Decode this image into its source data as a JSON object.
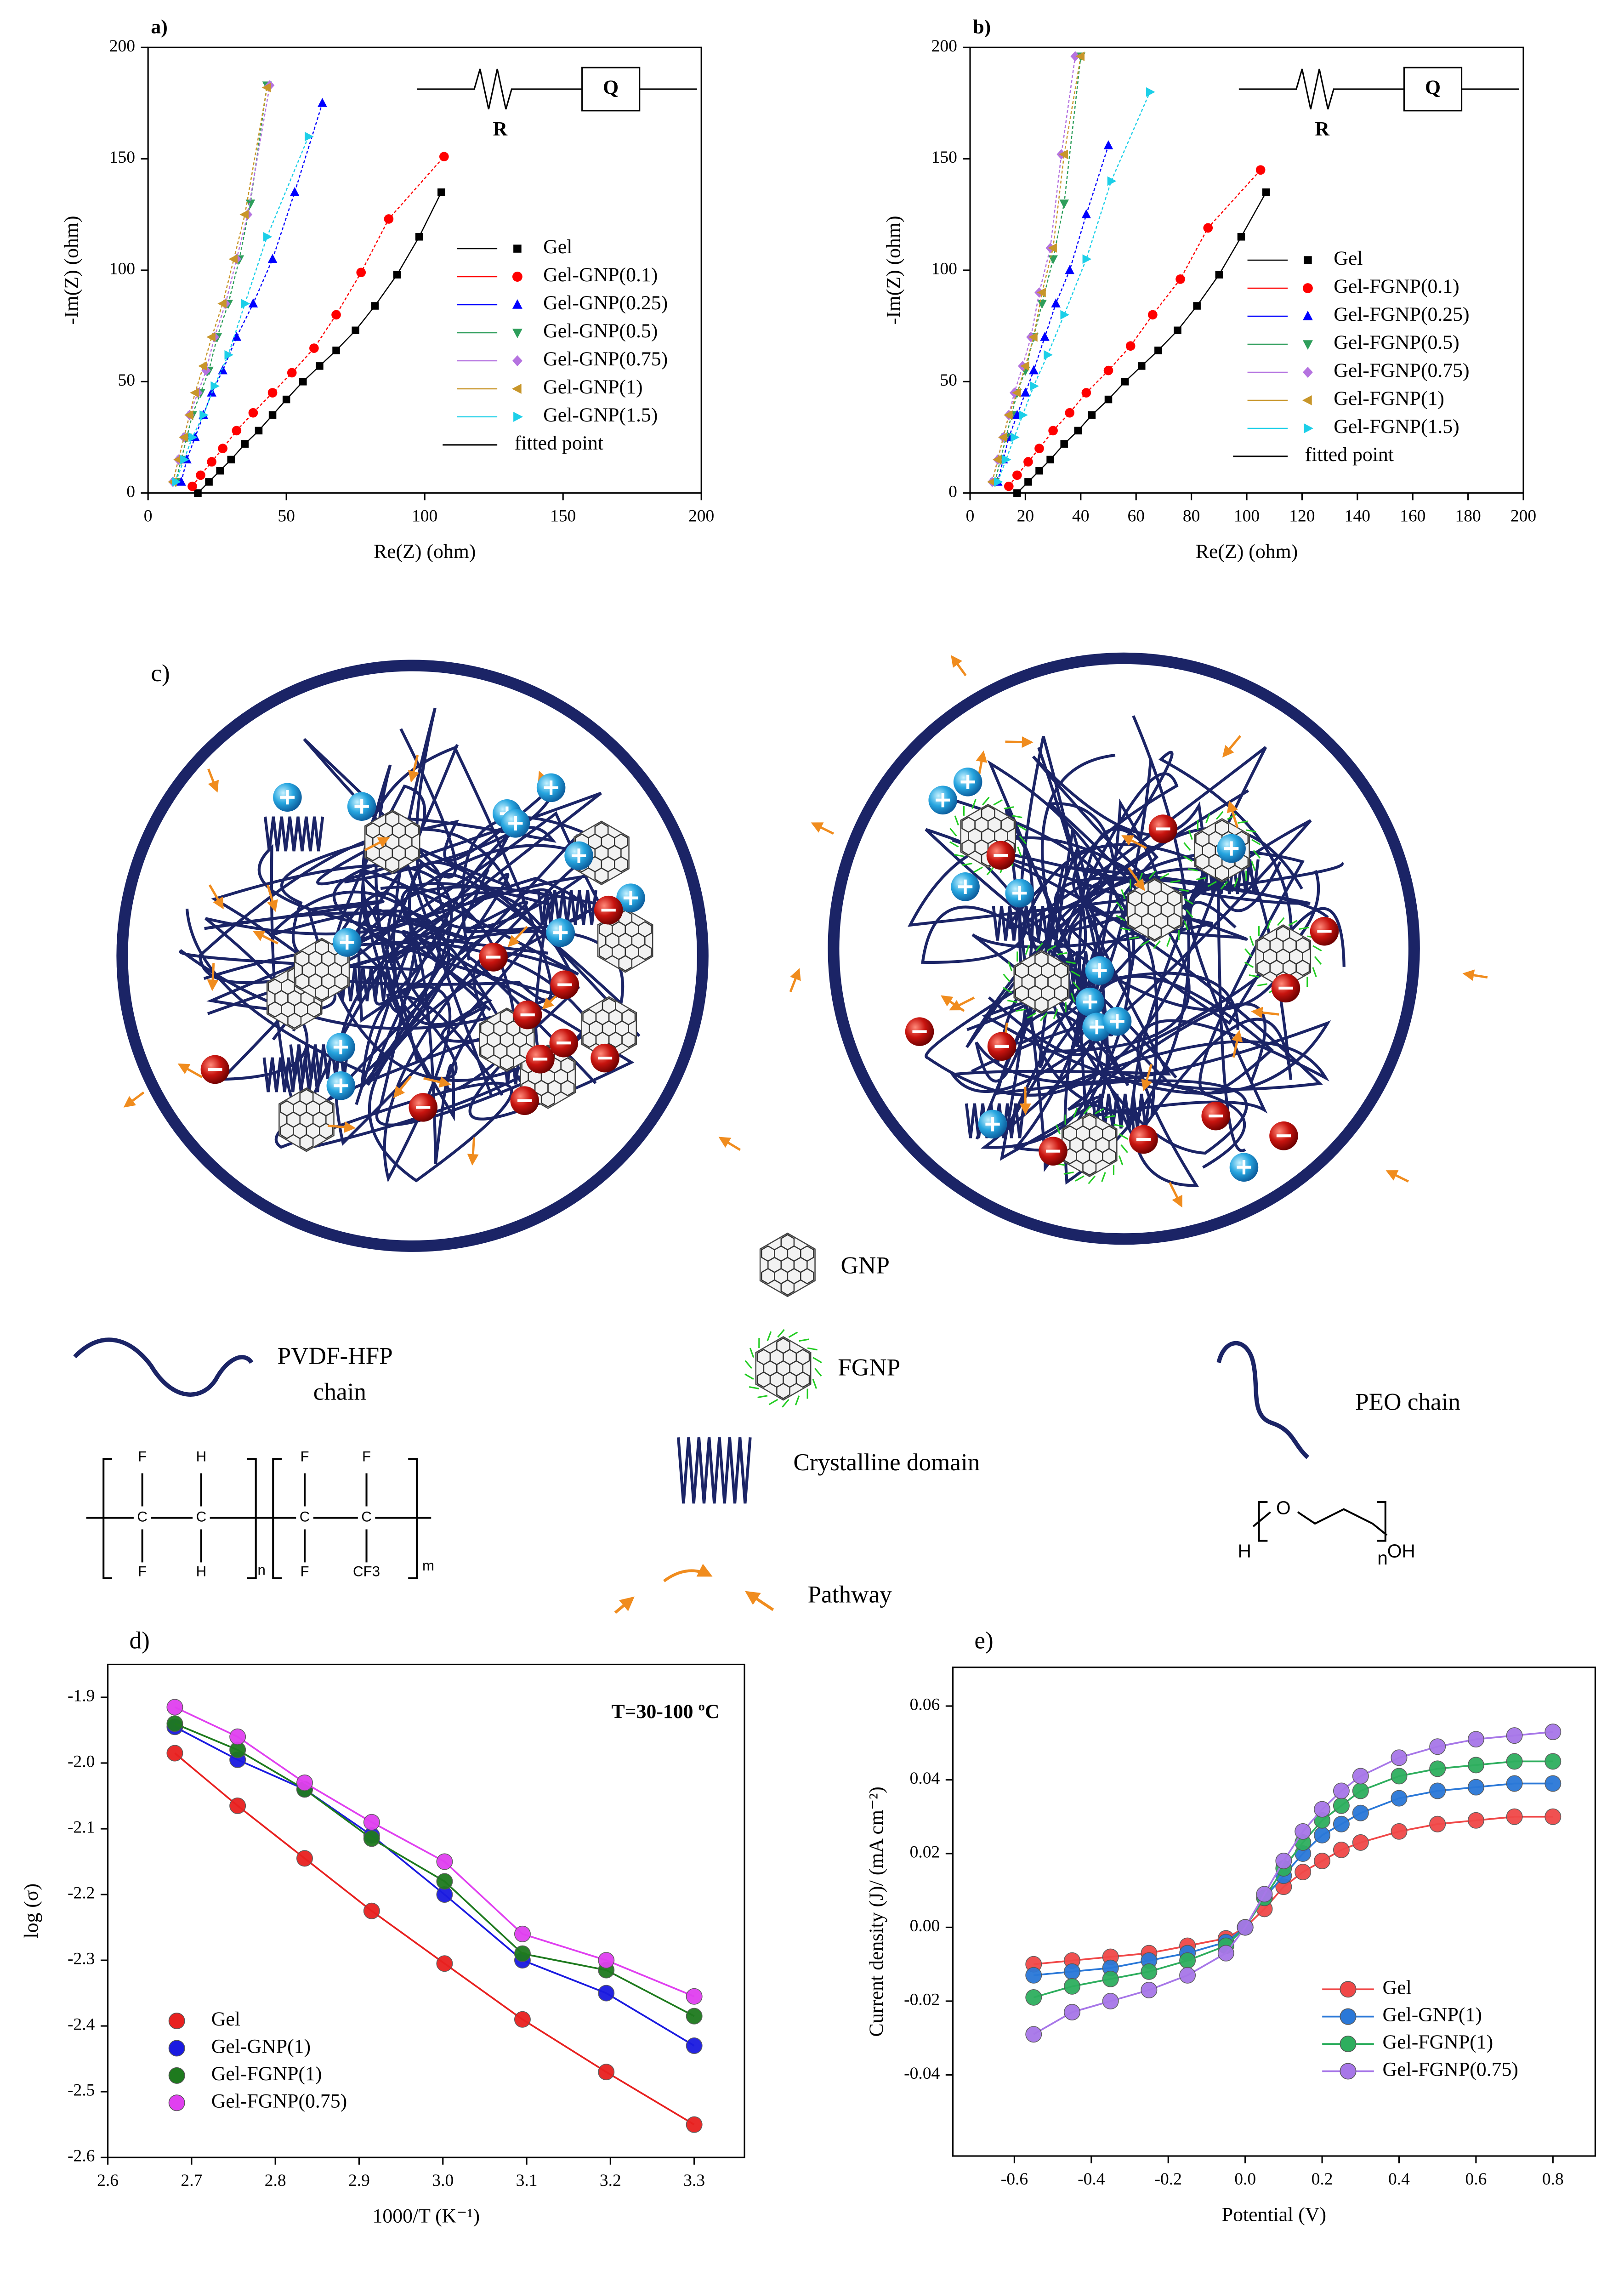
{
  "chart_data": [
    {
      "type": "scatter",
      "title": "a)",
      "x_label": "Re(Z) (ohm)",
      "y_label": "-Im(Z) (ohm)",
      "xlim": [
        0,
        200
      ],
      "ylim": [
        0,
        200
      ],
      "xticks": [
        0,
        50,
        100,
        150,
        200
      ],
      "yticks": [
        0,
        50,
        100,
        150,
        200
      ],
      "legend": "center right",
      "fit_label": "fitted point",
      "circuit": [
        "R",
        "Q"
      ],
      "series": [
        {
          "name": "Gel",
          "color": "#000000",
          "marker": "square",
          "x": [
            18,
            22,
            26,
            30,
            35,
            40,
            45,
            50,
            56,
            62,
            68,
            75,
            82,
            90,
            98,
            106
          ],
          "values": [
            0,
            5,
            10,
            15,
            22,
            28,
            35,
            42,
            50,
            57,
            64,
            73,
            84,
            98,
            115,
            135
          ]
        },
        {
          "name": "Gel-GNP(0.1)",
          "color": "#ff0000",
          "marker": "circle",
          "x": [
            16,
            19,
            23,
            27,
            32,
            38,
            45,
            52,
            60,
            68,
            77,
            87,
            107
          ],
          "values": [
            3,
            8,
            14,
            20,
            28,
            36,
            45,
            54,
            65,
            80,
            99,
            123,
            151
          ]
        },
        {
          "name": "Gel-GNP(0.25)",
          "color": "#0000ff",
          "marker": "triangle-up",
          "x": [
            12,
            14,
            17,
            20,
            23,
            27,
            32,
            38,
            45,
            53,
            63
          ],
          "values": [
            5,
            15,
            25,
            35,
            45,
            55,
            70,
            85,
            105,
            135,
            175
          ]
        },
        {
          "name": "Gel-GNP(0.5)",
          "color": "#2e9e5b",
          "marker": "triangle-down",
          "x": [
            10,
            12,
            14,
            16,
            19,
            22,
            25,
            29,
            33,
            37,
            43
          ],
          "values": [
            5,
            15,
            25,
            35,
            45,
            55,
            70,
            85,
            105,
            130,
            183
          ]
        },
        {
          "name": "Gel-GNP(0.75)",
          "color": "#b573e0",
          "marker": "diamond",
          "x": [
            9,
            11,
            13,
            15,
            18,
            21,
            24,
            28,
            32,
            36,
            44
          ],
          "values": [
            5,
            15,
            25,
            35,
            45,
            55,
            70,
            85,
            105,
            125,
            183
          ]
        },
        {
          "name": "Gel-GNP(1)",
          "color": "#c8962a",
          "marker": "triangle-left",
          "x": [
            9,
            11,
            13,
            15,
            17,
            20,
            23,
            27,
            31,
            35,
            43
          ],
          "values": [
            5,
            15,
            25,
            35,
            45,
            57,
            70,
            85,
            105,
            125,
            182
          ]
        },
        {
          "name": "Gel-GNP(1.5)",
          "color": "#1ccfe8",
          "marker": "triangle-right",
          "x": [
            10,
            13,
            16,
            20,
            24,
            29,
            35,
            43,
            58
          ],
          "values": [
            5,
            15,
            25,
            35,
            48,
            62,
            85,
            115,
            160
          ]
        }
      ]
    },
    {
      "type": "scatter",
      "title": "b)",
      "x_label": "Re(Z) (ohm)",
      "y_label": "-Im(Z) (ohm)",
      "xlim": [
        0,
        200
      ],
      "ylim": [
        0,
        200
      ],
      "xticks": [
        0,
        20,
        40,
        60,
        80,
        100,
        120,
        140,
        160,
        180,
        200
      ],
      "yticks": [
        0,
        50,
        100,
        150,
        200
      ],
      "legend": "center right",
      "fit_label": "fitted point",
      "circuit": [
        "R",
        "Q"
      ],
      "series": [
        {
          "name": "Gel",
          "color": "#000000",
          "marker": "square",
          "x": [
            17,
            21,
            25,
            29,
            34,
            39,
            44,
            50,
            56,
            62,
            68,
            75,
            82,
            90,
            98,
            107
          ],
          "values": [
            0,
            5,
            10,
            15,
            22,
            28,
            35,
            42,
            50,
            57,
            64,
            73,
            84,
            98,
            115,
            135
          ]
        },
        {
          "name": "Gel-FGNP(0.1)",
          "color": "#ff0000",
          "marker": "circle",
          "x": [
            14,
            17,
            21,
            25,
            30,
            36,
            42,
            50,
            58,
            66,
            76,
            86,
            105
          ],
          "values": [
            3,
            8,
            14,
            20,
            28,
            36,
            45,
            55,
            66,
            80,
            96,
            119,
            145
          ]
        },
        {
          "name": "Gel-FGNP(0.25)",
          "color": "#0000ff",
          "marker": "triangle-up",
          "x": [
            10,
            12,
            14,
            17,
            20,
            23,
            27,
            31,
            36,
            42,
            50
          ],
          "values": [
            5,
            15,
            25,
            35,
            45,
            55,
            70,
            85,
            100,
            125,
            156
          ]
        },
        {
          "name": "Gel-FGNP(0.5)",
          "color": "#2e9e5b",
          "marker": "triangle-down",
          "x": [
            9,
            11,
            13,
            15,
            17,
            20,
            23,
            26,
            30,
            34,
            40
          ],
          "values": [
            5,
            15,
            25,
            35,
            45,
            55,
            70,
            85,
            105,
            130,
            196
          ]
        },
        {
          "name": "Gel-FGNP(0.75)",
          "color": "#b573e0",
          "marker": "diamond",
          "x": [
            8,
            10,
            12,
            14,
            16,
            19,
            22,
            25,
            29,
            33,
            38
          ],
          "values": [
            5,
            15,
            25,
            35,
            45,
            57,
            70,
            90,
            110,
            152,
            196
          ]
        },
        {
          "name": "Gel-FGNP(1)",
          "color": "#c8962a",
          "marker": "triangle-left",
          "x": [
            8,
            10,
            12,
            14,
            17,
            20,
            23,
            26,
            30,
            34,
            40
          ],
          "values": [
            5,
            15,
            25,
            35,
            45,
            57,
            70,
            90,
            110,
            152,
            196
          ]
        },
        {
          "name": "Gel-FGNP(1.5)",
          "color": "#1ccfe8",
          "marker": "triangle-right",
          "x": [
            10,
            13,
            16,
            19,
            23,
            28,
            34,
            42,
            51,
            65
          ],
          "values": [
            5,
            15,
            25,
            35,
            48,
            62,
            80,
            105,
            140,
            180
          ]
        }
      ]
    },
    {
      "type": "line-scatter",
      "title": "d)",
      "x_label": "1000/T (K⁻¹)",
      "y_label": "log (σ)",
      "annotation": "T=30-100 ºC",
      "legend": "lower left",
      "xlim": [
        2.6,
        3.36
      ],
      "ylim": [
        -2.6,
        -1.85
      ],
      "xticks": [
        2.6,
        2.7,
        2.8,
        2.9,
        {
          "value": 3,
          "label": "3.0"
        },
        3.1,
        3.2,
        3.3
      ],
      "yticks": [
        -1.9,
        {
          "value": -2,
          "label": "-2.0"
        },
        -2.1,
        -2.2,
        -2.3,
        -2.4,
        -2.5,
        -2.6
      ],
      "x": [
        2.68,
        2.755,
        2.835,
        2.915,
        3.002,
        3.095,
        3.195,
        3.3
      ],
      "series": [
        {
          "name": "Gel",
          "color": "#e8201f",
          "values": [
            -1.985,
            -2.065,
            -2.145,
            -2.225,
            -2.305,
            -2.39,
            -2.47,
            -2.55
          ]
        },
        {
          "name": "Gel-GNP(1)",
          "color": "#1a1ae0",
          "values": [
            -1.945,
            -1.995,
            -2.04,
            -2.11,
            -2.2,
            -2.3,
            -2.35,
            -2.43
          ]
        },
        {
          "name": "Gel-FGNP(1)",
          "color": "#1e7a1e",
          "values": [
            -1.94,
            -1.98,
            -2.04,
            -2.115,
            -2.18,
            -2.29,
            -2.315,
            -2.385
          ]
        },
        {
          "name": "Gel-FGNP(0.75)",
          "color": "#e040f0",
          "values": [
            -1.915,
            -1.96,
            -2.03,
            -2.09,
            -2.15,
            -2.26,
            -2.3,
            -2.355
          ]
        }
      ]
    },
    {
      "type": "line-scatter",
      "title": "e)",
      "x_label": "Potential (V)",
      "y_label": "Current density (J)/ (mA cm⁻²)",
      "legend": "lower right",
      "xlim": [
        -0.76,
        0.91
      ],
      "ylim": [
        -0.062,
        0.0705
      ],
      "xticks": [
        -0.6,
        -0.4,
        -0.2,
        {
          "value": 0,
          "label": "0.0"
        },
        0.2,
        0.4,
        0.6,
        0.8
      ],
      "yticks": [
        -0.04,
        -0.02,
        {
          "value": 0,
          "label": "0.00"
        },
        0.02,
        0.04,
        0.06
      ],
      "x": [
        -0.55,
        -0.45,
        -0.35,
        -0.25,
        -0.15,
        -0.05,
        0,
        0.05,
        0.1,
        0.15,
        0.2,
        0.25,
        0.3,
        0.4,
        0.5,
        0.6,
        0.7,
        0.8
      ],
      "series": [
        {
          "name": "Gel",
          "color": "#f04848",
          "values": [
            -0.01,
            -0.009,
            -0.008,
            -0.007,
            -0.005,
            -0.003,
            0.0,
            0.005,
            0.011,
            0.015,
            0.018,
            0.021,
            0.023,
            0.026,
            0.028,
            0.029,
            0.03,
            0.03
          ]
        },
        {
          "name": "Gel-GNP(1)",
          "color": "#2a78d8",
          "values": [
            -0.013,
            -0.012,
            -0.011,
            -0.009,
            -0.007,
            -0.004,
            0.0,
            0.008,
            0.014,
            0.02,
            0.025,
            0.028,
            0.031,
            0.035,
            0.037,
            0.038,
            0.039,
            0.039
          ]
        },
        {
          "name": "Gel-FGNP(1)",
          "color": "#2eae5e",
          "values": [
            -0.019,
            -0.016,
            -0.014,
            -0.012,
            -0.009,
            -0.005,
            0.0,
            0.008,
            0.016,
            0.023,
            0.029,
            0.033,
            0.037,
            0.041,
            0.043,
            0.044,
            0.045,
            0.045
          ]
        },
        {
          "name": "Gel-FGNP(0.75)",
          "color": "#a777e8",
          "values": [
            -0.029,
            -0.023,
            -0.02,
            -0.017,
            -0.013,
            -0.007,
            0.0,
            0.009,
            0.018,
            0.026,
            0.032,
            0.037,
            0.041,
            0.046,
            0.049,
            0.051,
            0.052,
            0.053
          ]
        }
      ]
    }
  ],
  "diagram": {
    "label": "c)",
    "gnp": "GNP",
    "fgnp": "FGNP",
    "pvdf": [
      "PVDF-HFP",
      "chain"
    ],
    "peo": "PEO chain",
    "crystalline": "Crystalline domain",
    "pathway": "Pathway",
    "pvdf_formula": [
      "F",
      "H",
      "F",
      "F",
      "C",
      "C",
      "C",
      "C",
      "F",
      "H",
      "F",
      "CF3",
      "n",
      "m"
    ],
    "peo_formula": [
      "H",
      "O",
      "OH",
      "n"
    ]
  }
}
